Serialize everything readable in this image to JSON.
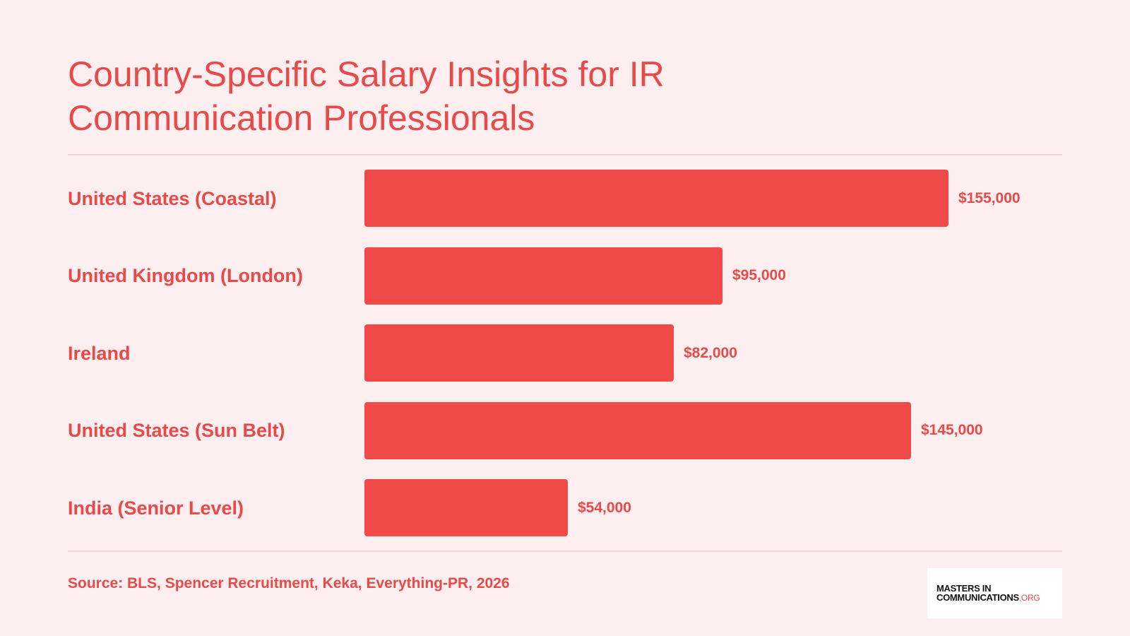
{
  "title": "Country-Specific Salary Insights for IR Communication Professionals",
  "source": "Source: BLS, Spencer Recruitment, Keka, Everything-PR, 2026",
  "logo": {
    "line1": "MASTERS IN",
    "line2": "COMMUNICATIONS",
    "line2_suffix": ".ORG"
  },
  "colors": {
    "background": "#fdeff0",
    "bar": "#ef4a48",
    "text": "#e84a4a"
  },
  "chart_data": {
    "type": "bar",
    "orientation": "horizontal",
    "categories": [
      "United States (Coastal)",
      "United Kingdom (London)",
      "Ireland",
      "United States (Sun Belt)",
      "India (Senior Level)"
    ],
    "values": [
      155000,
      95000,
      82000,
      145000,
      54000
    ],
    "value_labels": [
      "$155,000",
      "$95,000",
      "$82,000",
      "$145,000",
      "$54,000"
    ],
    "title": "Country-Specific Salary Insights for IR Communication Professionals",
    "xlim": [
      0,
      155000
    ],
    "grid": false,
    "legend": "none"
  }
}
